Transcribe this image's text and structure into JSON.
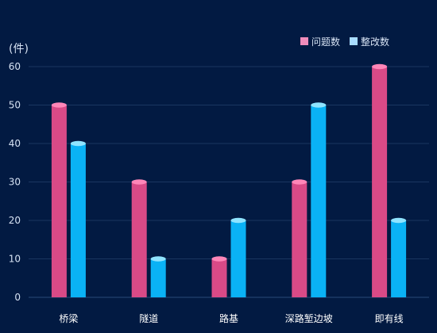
{
  "colors": {
    "background": "#021a42",
    "grid": "#1a3660",
    "axis_text": "#d6e2f3",
    "category_text": "#ffffff",
    "series_1": "#d94a87",
    "series_1_top": "#ff86b8",
    "series_2": "#0ab2f5",
    "series_2_top": "#8fe4ff"
  },
  "chart_data": {
    "type": "bar",
    "title": "",
    "unit_label": "(件)",
    "categories": [
      "桥梁",
      "隧道",
      "路基",
      "深路堑边坡",
      "即有线"
    ],
    "series": [
      {
        "name": "问题数",
        "values": [
          50,
          30,
          10,
          30,
          60
        ]
      },
      {
        "name": "整改数",
        "values": [
          40,
          10,
          20,
          50,
          20
        ]
      }
    ],
    "ylim": [
      0,
      60
    ],
    "yticks": [
      0,
      10,
      20,
      30,
      40,
      50,
      60
    ],
    "grid": true,
    "legend": "top-right"
  }
}
